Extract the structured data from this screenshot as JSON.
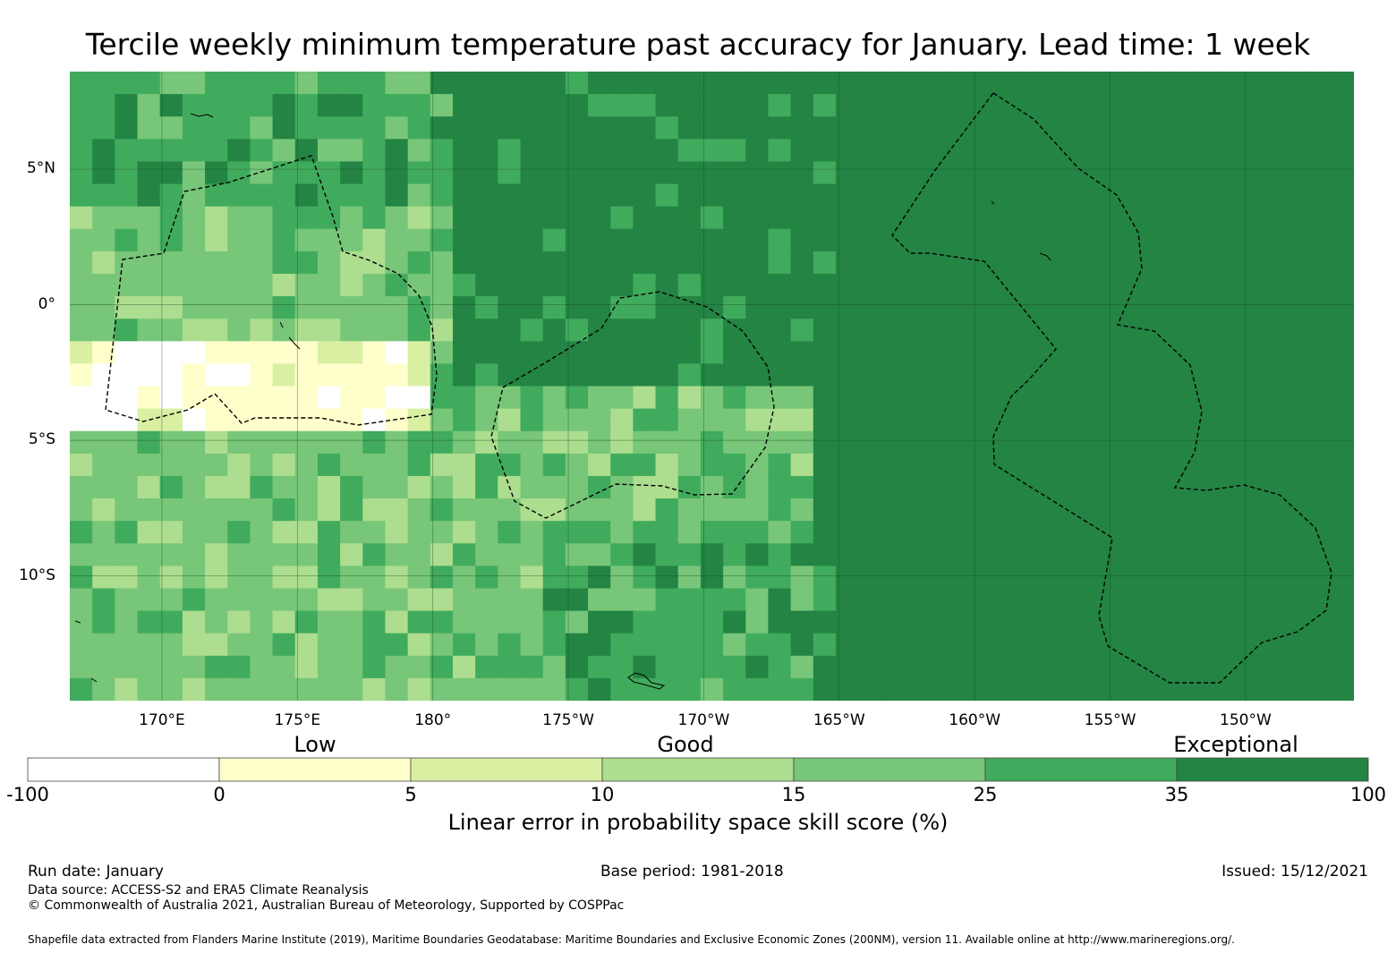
{
  "title": "Tercile weekly minimum temperature past accuracy for January. Lead time: 1 week",
  "map": {
    "lat_labels": [
      "5°N",
      "0°",
      "5°S",
      "10°S"
    ],
    "lat_values": [
      5,
      0,
      -5,
      -10
    ],
    "lon_labels": [
      "170°E",
      "175°E",
      "180°",
      "175°W",
      "170°W",
      "165°W",
      "160°W",
      "155°W",
      "150°W"
    ],
    "lon_values": [
      170,
      175,
      180,
      185,
      190,
      195,
      200,
      205,
      210
    ],
    "lon_range": [
      166.6,
      214.0
    ],
    "lat_range": [
      -14.6,
      8.6
    ],
    "cell_size_deg": 0.833,
    "columns": 57,
    "rows": 28,
    "grid_color": "#1a4d2a",
    "eez_line_color": "#000000",
    "category_zones_note": "skill class index 0-7 per region",
    "regions": [
      {
        "name": "west-north",
        "lon": [
          166.6,
          181
        ],
        "lat": [
          3.5,
          8.6
        ],
        "class": 5
      },
      {
        "name": "west-mid",
        "lon": [
          166.6,
          180
        ],
        "lat": [
          -1,
          3.5
        ],
        "class": 4
      },
      {
        "name": "west-equator-low",
        "lon": [
          166.6,
          179.5
        ],
        "lat": [
          -5,
          -1
        ],
        "class": 1
      },
      {
        "name": "west-south",
        "lon": [
          166.6,
          184
        ],
        "lat": [
          -9,
          -5
        ],
        "class": 4
      },
      {
        "name": "west-far-south",
        "lon": [
          166.6,
          184
        ],
        "lat": [
          -14.6,
          -9
        ],
        "class": 4
      },
      {
        "name": "central-north",
        "lon": [
          181,
          194
        ],
        "lat": [
          -3,
          8.6
        ],
        "class": 6
      },
      {
        "name": "central-mid",
        "lon": [
          184,
          195
        ],
        "lat": [
          -8,
          -3
        ],
        "class": 4
      },
      {
        "name": "central-south",
        "lon": [
          184,
          197
        ],
        "lat": [
          -14.6,
          -8
        ],
        "class": 5
      },
      {
        "name": "east-all",
        "lon": [
          194,
          214
        ],
        "lat": [
          -14.6,
          8.6
        ],
        "class": 6
      }
    ]
  },
  "colorbar": {
    "category_labels": [
      "Low",
      "Good",
      "Exceptional"
    ],
    "ticks": [
      "-100",
      "0",
      "5",
      "10",
      "15",
      "25",
      "35",
      "100"
    ],
    "colors": [
      "#ffffff",
      "#ffffcc",
      "#d9f0a3",
      "#addd8e",
      "#78c679",
      "#41ab5d",
      "#238443"
    ],
    "label": "Linear error in probability space skill score (%)"
  },
  "footer": {
    "run_date": "Run date: January",
    "base_period": "Base period: 1981-2018",
    "issued": "Issued: 15/12/2021",
    "data_source": "Data source: ACCESS-S2 and ERA5 Climate Reanalysis",
    "copyright": "© Commonwealth of Australia 2021, Australian Bureau of Meteorology, Supported by COSPPac",
    "shapefile": "Shapefile data extracted from Flanders Marine Institute (2019), Maritime Boundaries Geodatabase: Maritime Boundaries and Exclusive Economic Zones (200NM), version 11. Available online at http://www.marineregions.org/."
  }
}
